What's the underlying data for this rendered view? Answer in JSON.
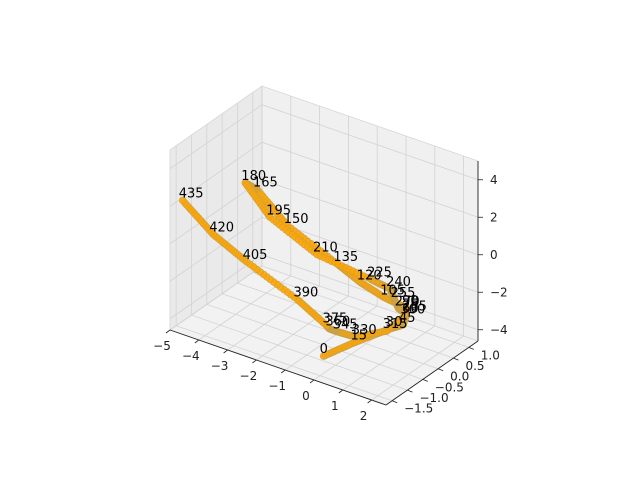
{
  "chart_data": {
    "type": "scatter3d",
    "title": "",
    "xlabel": "",
    "ylabel": "",
    "zlabel": "",
    "x_ticks": [
      "−5",
      "−4",
      "−3",
      "−2",
      "−1",
      "0",
      "1",
      "2"
    ],
    "y_ticks": [
      "−1.5",
      "−1.0",
      "−0.5",
      "0.0",
      "0.5",
      "1.0"
    ],
    "z_ticks": [
      "−4",
      "−2",
      "0",
      "2",
      "4"
    ],
    "series": [
      {
        "color": "#ffa500",
        "edge_color": "#c8a048",
        "points": [
          {
            "label": "0",
            "x": -0.2,
            "y": -1.2,
            "z": -4.0
          },
          {
            "label": "15",
            "x": 0.5,
            "y": -0.85,
            "z": -3.3
          },
          {
            "label": "30",
            "x": 1.3,
            "y": -0.45,
            "z": -2.6
          },
          {
            "label": "45",
            "x": 1.6,
            "y": -0.3,
            "z": -2.4
          },
          {
            "label": "60",
            "x": 1.6,
            "y": -0.2,
            "z": -2.0
          },
          {
            "label": "75",
            "x": 1.6,
            "y": -0.2,
            "z": -1.8
          },
          {
            "label": "90",
            "x": 1.6,
            "y": -0.2,
            "z": -1.6
          },
          {
            "label": "105",
            "x": 1.0,
            "y": -0.35,
            "z": -1.2
          },
          {
            "label": "120",
            "x": 0.4,
            "y": -0.55,
            "z": -0.5
          },
          {
            "label": "135",
            "x": -0.2,
            "y": -0.75,
            "z": 0.4
          },
          {
            "label": "150",
            "x": -1.5,
            "y": -1.15,
            "z": 2.2
          },
          {
            "label": "165",
            "x": -2.3,
            "y": -1.4,
            "z": 4.0
          },
          {
            "label": "180",
            "x": -2.6,
            "y": -1.5,
            "z": 4.3
          },
          {
            "label": "195",
            "x": -2.0,
            "y": -1.25,
            "z": 2.5
          },
          {
            "label": "210",
            "x": -0.8,
            "y": -0.85,
            "z": 0.7
          },
          {
            "label": "225",
            "x": 0.6,
            "y": -0.4,
            "z": -0.4
          },
          {
            "label": "240",
            "x": 1.1,
            "y": -0.25,
            "z": -0.8
          },
          {
            "label": "255",
            "x": 1.2,
            "y": -0.2,
            "z": -1.4
          },
          {
            "label": "270",
            "x": 1.4,
            "y": -0.25,
            "z": -1.7
          },
          {
            "label": "285",
            "x": 1.6,
            "y": -0.2,
            "z": -1.9
          },
          {
            "label": "300",
            "x": 1.6,
            "y": -0.25,
            "z": -2.0
          },
          {
            "label": "315",
            "x": 1.3,
            "y": -0.55,
            "z": -2.6
          },
          {
            "label": "330",
            "x": 0.6,
            "y": -0.9,
            "z": -2.9
          },
          {
            "label": "345",
            "x": 0.1,
            "y": -1.05,
            "z": -2.7
          },
          {
            "label": "360",
            "x": -0.1,
            "y": -1.1,
            "z": -2.6
          },
          {
            "label": "375",
            "x": -0.15,
            "y": -1.15,
            "z": -2.4
          },
          {
            "label": "390",
            "x": -1.0,
            "y": -1.3,
            "z": -1.3
          },
          {
            "label": "405",
            "x": -2.5,
            "y": -1.55,
            "z": 0.2
          },
          {
            "label": "420",
            "x": -3.5,
            "y": -1.7,
            "z": 1.3
          },
          {
            "label": "435",
            "x": -4.4,
            "y": -1.85,
            "z": 2.8
          }
        ]
      }
    ]
  }
}
